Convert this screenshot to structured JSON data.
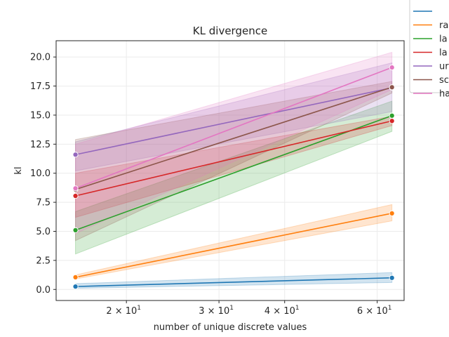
{
  "chart_data": {
    "type": "line",
    "title": "KL divergence",
    "xlabel": "number of unique discrete values",
    "ylabel": "kl",
    "xscale": "log",
    "xlim": [
      14.7,
      67.5
    ],
    "ylim": [
      -0.95,
      21.4
    ],
    "x": [
      16,
      64
    ],
    "xticks": [
      {
        "value": 20,
        "label": "2 × 10",
        "exp": "1"
      },
      {
        "value": 30,
        "label": "3 × 10",
        "exp": "1"
      },
      {
        "value": 40,
        "label": "4 × 10",
        "exp": "1"
      },
      {
        "value": 60,
        "label": "6 × 10",
        "exp": "1"
      }
    ],
    "yticks": [
      "0.0",
      "2.5",
      "5.0",
      "7.5",
      "10.0",
      "12.5",
      "15.0",
      "17.5",
      "20.0"
    ],
    "grid": true,
    "legend_position": "outside-upper-right",
    "series": [
      {
        "name": "",
        "color": "#1f77b4",
        "values": [
          0.25,
          1.0
        ],
        "lower": [
          0.1,
          0.6
        ],
        "upper": [
          0.5,
          1.45
        ]
      },
      {
        "name": "ra",
        "color": "#ff7f0e",
        "values": [
          1.05,
          6.55
        ],
        "lower": [
          0.9,
          5.9
        ],
        "upper": [
          1.25,
          7.3
        ]
      },
      {
        "name": "la",
        "color": "#2ca02c",
        "values": [
          5.1,
          14.95
        ],
        "lower": [
          3.05,
          13.6
        ],
        "upper": [
          6.7,
          16.2
        ]
      },
      {
        "name": "la",
        "color": "#d62728",
        "values": [
          8.05,
          14.5
        ],
        "lower": [
          6.2,
          14.1
        ],
        "upper": [
          10.0,
          14.9
        ]
      },
      {
        "name": "ur",
        "color": "#9467bd",
        "values": [
          11.6,
          17.35
        ],
        "lower": [
          10.2,
          15.3
        ],
        "upper": [
          12.7,
          19.5
        ]
      },
      {
        "name": "sc",
        "color": "#8c564b",
        "values": [
          8.6,
          17.4
        ],
        "lower": [
          4.2,
          16.9
        ],
        "upper": [
          12.9,
          17.9
        ]
      },
      {
        "name": "ha",
        "color": "#e377c2",
        "values": [
          8.7,
          19.1
        ],
        "lower": [
          4.8,
          17.2
        ],
        "upper": [
          12.5,
          20.4
        ]
      }
    ]
  }
}
